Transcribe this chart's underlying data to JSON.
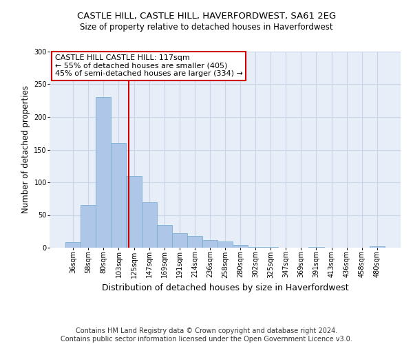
{
  "title1": "CASTLE HILL, CASTLE HILL, HAVERFORDWEST, SA61 2EG",
  "title2": "Size of property relative to detached houses in Haverfordwest",
  "xlabel": "Distribution of detached houses by size in Haverfordwest",
  "ylabel": "Number of detached properties",
  "categories": [
    "36sqm",
    "58sqm",
    "80sqm",
    "103sqm",
    "125sqm",
    "147sqm",
    "169sqm",
    "191sqm",
    "214sqm",
    "236sqm",
    "258sqm",
    "280sqm",
    "302sqm",
    "325sqm",
    "347sqm",
    "369sqm",
    "391sqm",
    "413sqm",
    "436sqm",
    "458sqm",
    "480sqm"
  ],
  "values": [
    8,
    65,
    230,
    160,
    110,
    70,
    35,
    22,
    18,
    12,
    10,
    4,
    1,
    1,
    0,
    0,
    1,
    0,
    0,
    0,
    2
  ],
  "bar_color": "#aec6e8",
  "bar_edge_color": "#7aafd4",
  "grid_color": "#c8d4e8",
  "background_color": "#e8eef8",
  "vline_color": "#cc0000",
  "annotation_text": "CASTLE HILL CASTLE HILL: 117sqm\n← 55% of detached houses are smaller (405)\n45% of semi-detached houses are larger (334) →",
  "annotation_box_color": "#ffffff",
  "annotation_box_edge": "#cc0000",
  "footer": "Contains HM Land Registry data © Crown copyright and database right 2024.\nContains public sector information licensed under the Open Government Licence v3.0.",
  "ylim": [
    0,
    300
  ],
  "yticks": [
    0,
    50,
    100,
    150,
    200,
    250,
    300
  ],
  "title1_fontsize": 9.5,
  "title2_fontsize": 8.5,
  "xlabel_fontsize": 9,
  "ylabel_fontsize": 8.5,
  "tick_fontsize": 7,
  "footer_fontsize": 7,
  "annotation_fontsize": 8
}
